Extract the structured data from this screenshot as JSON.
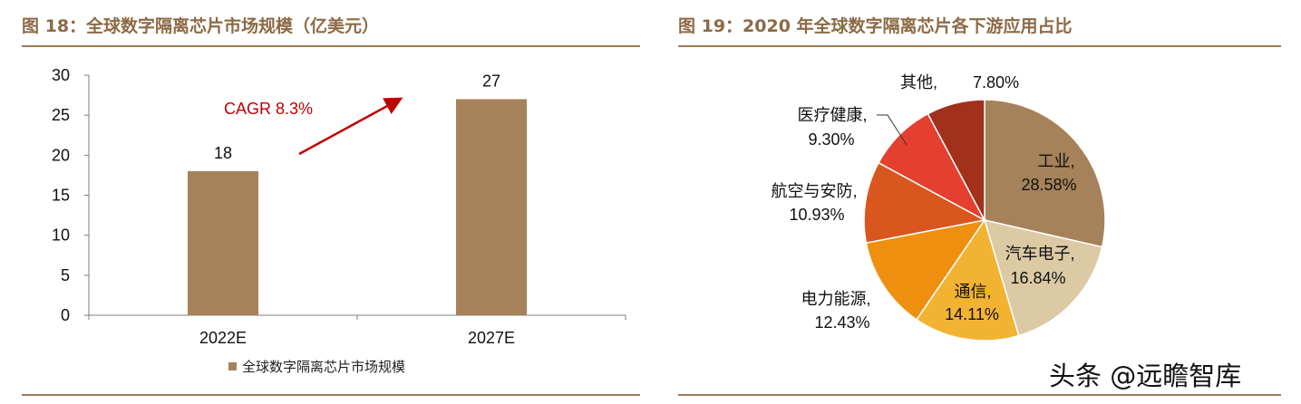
{
  "chart_data": [
    {
      "type": "bar",
      "title": "图 18：全球数字隔离芯片市场规模（亿美元）",
      "categories": [
        "2022E",
        "2027E"
      ],
      "series": [
        {
          "name": "全球数字隔离芯片市场规模",
          "values": [
            18,
            27
          ]
        }
      ],
      "ylim": [
        0,
        30
      ],
      "yticks": [
        0,
        5,
        10,
        15,
        20,
        25,
        30
      ],
      "annotation": "CAGR 8.3%",
      "bar_color": "#a58259",
      "annotation_color": "#c00000",
      "legend_position": "bottom"
    },
    {
      "type": "pie",
      "title": "图 19：2020 年全球数字隔离芯片各下游应用占比",
      "slices": [
        {
          "name": "工业,",
          "value": 28.58,
          "label": "28.58%",
          "color": "#a58259"
        },
        {
          "name": "汽车电子,",
          "value": 16.84,
          "label": "16.84%",
          "color": "#dccaa5"
        },
        {
          "name": "通信,",
          "value": 14.11,
          "label": "14.11%",
          "color": "#f3b332"
        },
        {
          "name": "电力能源,",
          "value": 12.43,
          "label": "12.43%",
          "color": "#ef8f10"
        },
        {
          "name": "航空与安防,",
          "value": 10.93,
          "label": "10.93%",
          "color": "#d9561e"
        },
        {
          "name": "医疗健康,",
          "value": 9.3,
          "label": "9.30%",
          "color": "#e53f2f"
        },
        {
          "name": "其他,",
          "value": 7.8,
          "label": "7.80%",
          "color": "#a3301a"
        }
      ]
    }
  ],
  "watermark": "头条 @远瞻智库"
}
